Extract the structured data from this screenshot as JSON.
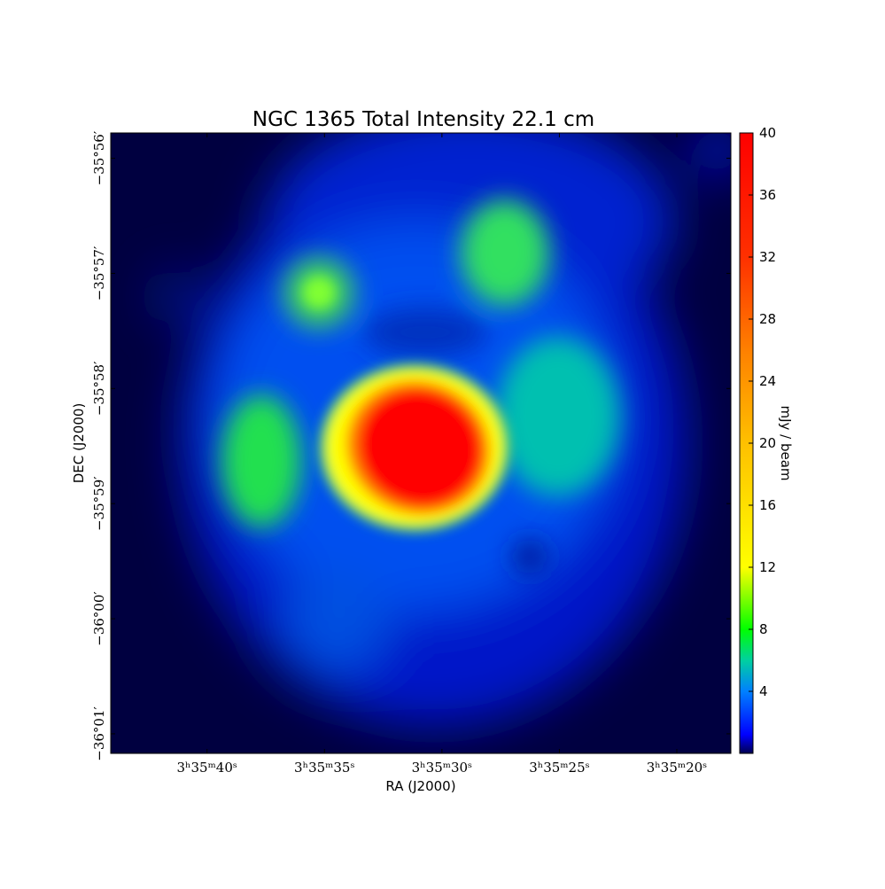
{
  "chart_data": {
    "type": "image",
    "title": "NGC 1365 Total Intensity 22.1 cm",
    "xlabel": "RA (J2000)",
    "ylabel": "DEC (J2000)",
    "colorbar_label": "mJy / beam",
    "xlim": [
      44.1,
      17.7
    ],
    "xticks": [
      {
        "value": 40,
        "label": "3ʰ35ᵐ40ˢ"
      },
      {
        "value": 35,
        "label": "3ʰ35ᵐ35ˢ"
      },
      {
        "value": 30,
        "label": "3ʰ35ᵐ30ˢ"
      },
      {
        "value": 25,
        "label": "3ʰ35ᵐ25ˢ"
      },
      {
        "value": 20,
        "label": "3ʰ35ᵐ20ˢ"
      }
    ],
    "ylim": [
      -2161.17,
      -2155.78
    ],
    "yticks": [
      {
        "value": -2156,
        "label": "−35°56′"
      },
      {
        "value": -2157,
        "label": "−35°57′"
      },
      {
        "value": -2158,
        "label": "−35°58′"
      },
      {
        "value": -2159,
        "label": "−35°59′"
      },
      {
        "value": -2160,
        "label": "−36°00′"
      },
      {
        "value": -2161,
        "label": "−36°01′"
      }
    ],
    "clim": [
      0,
      40
    ],
    "cticks": [
      4,
      8,
      12,
      16,
      20,
      24,
      28,
      32,
      36,
      40
    ]
  }
}
